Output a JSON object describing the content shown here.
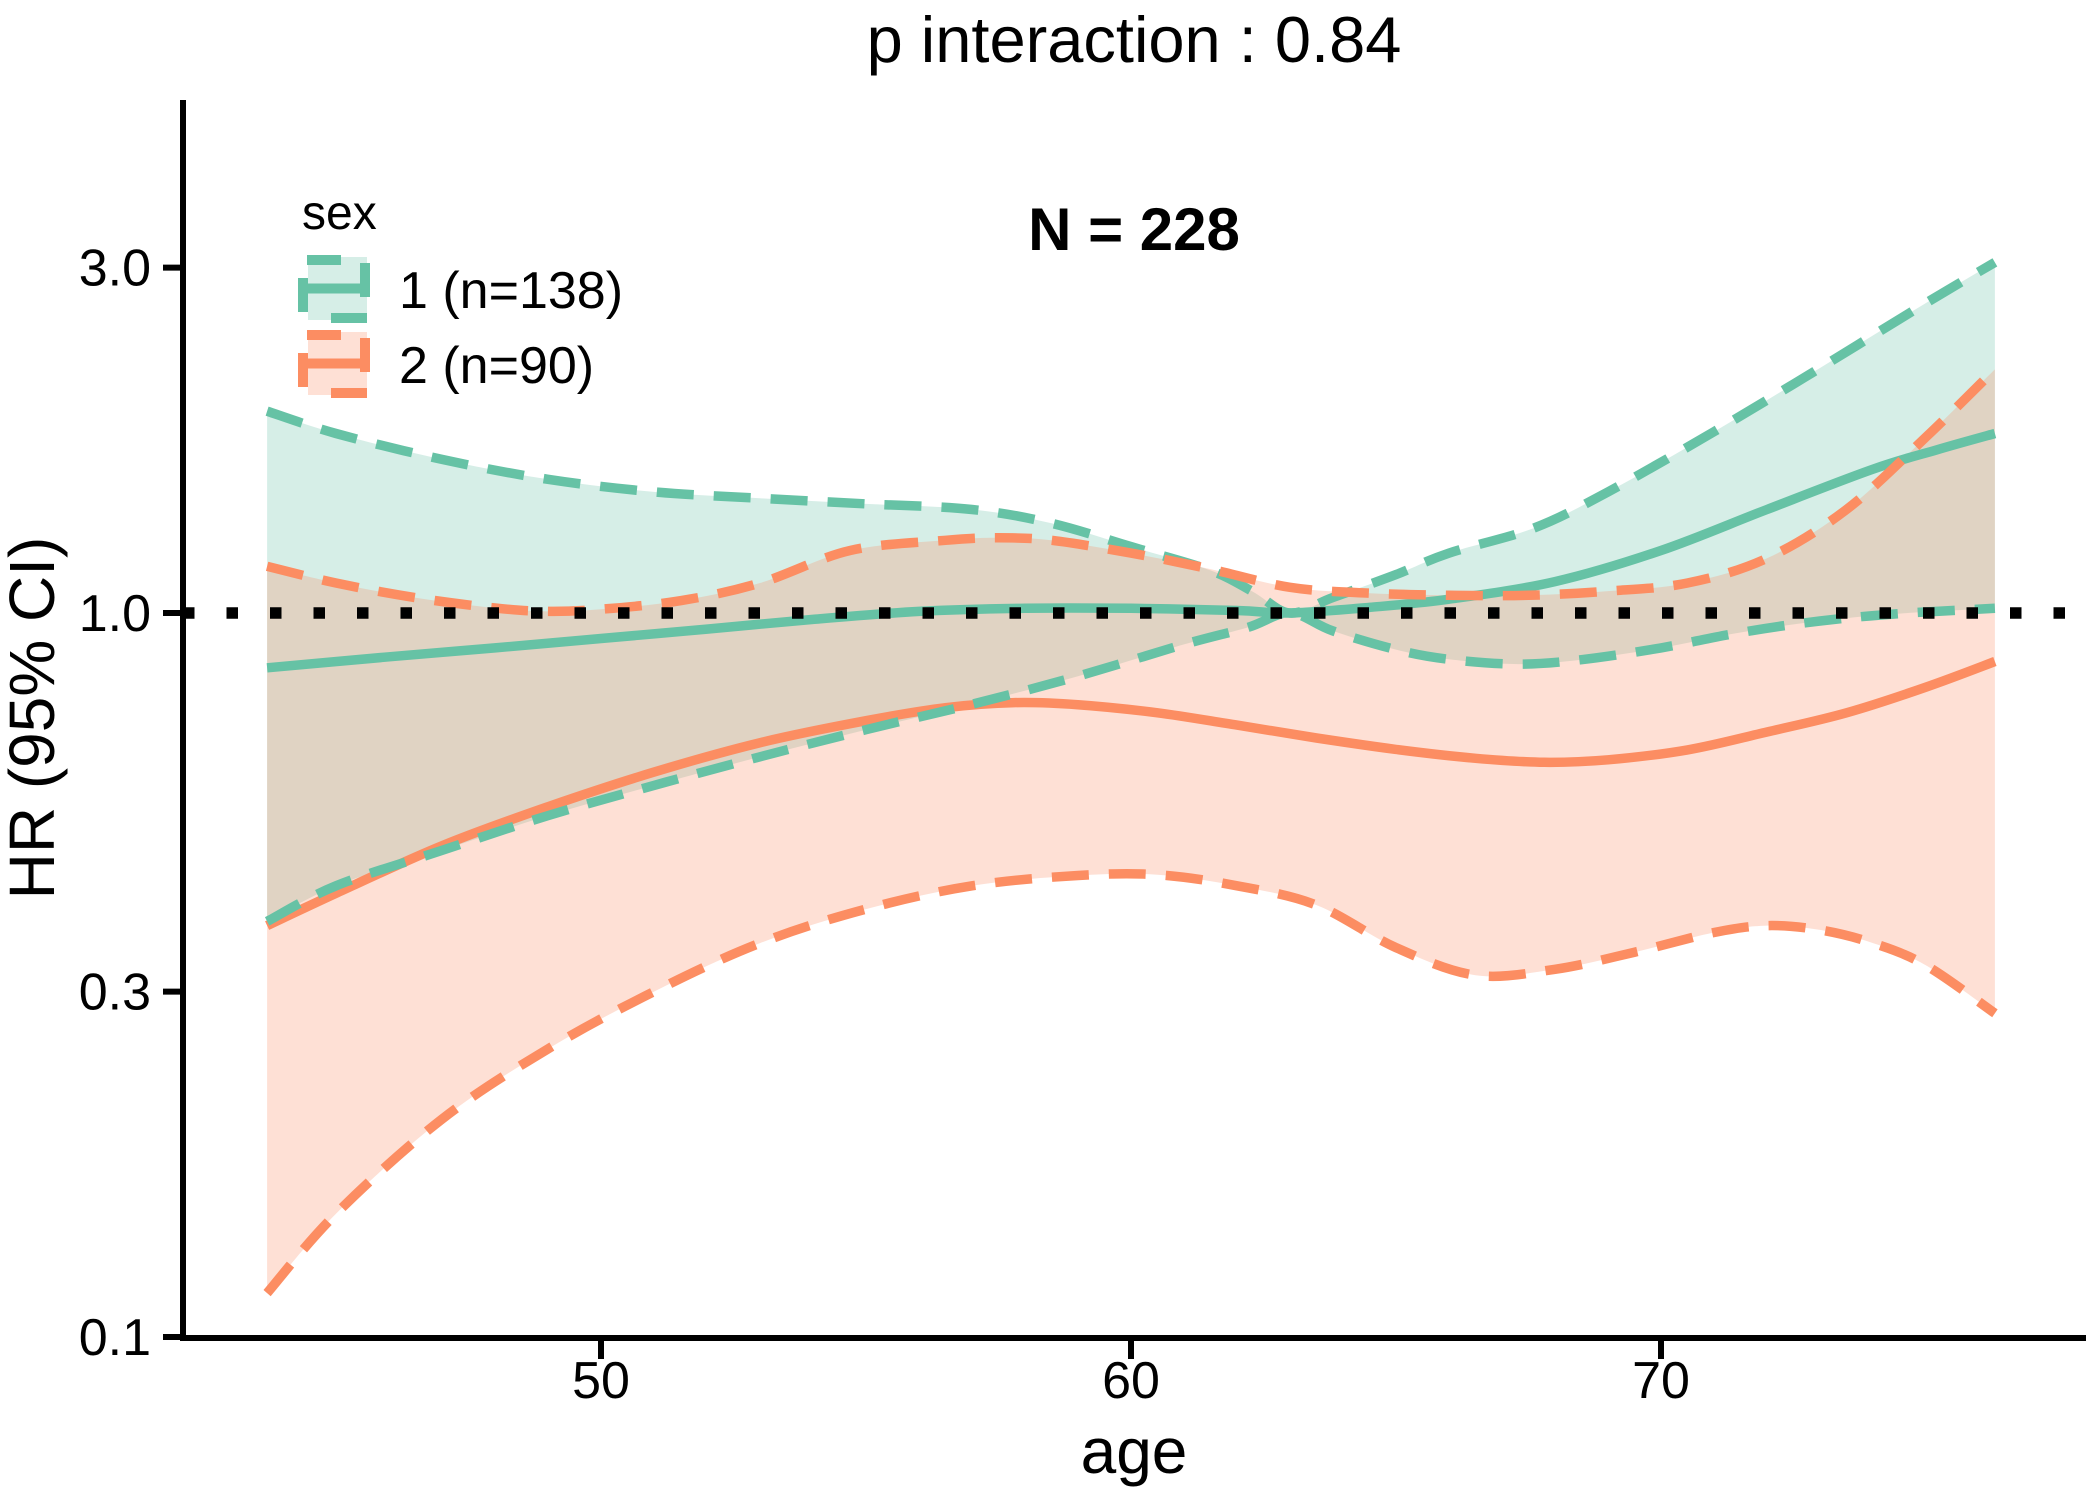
{
  "chart_data": {
    "type": "line",
    "title": "p interaction : 0.84",
    "subtitle_n": "N = 228",
    "xlabel": "age",
    "ylabel": "HR (95% CI)",
    "y_scale": "log10",
    "x_range": [
      43.7,
      76.3
    ],
    "y_axis_ticks": [
      {
        "value": 3.0,
        "label": "3.0"
      },
      {
        "value": 1.0,
        "label": "1.0"
      },
      {
        "value": 0.3,
        "label": "0.3"
      },
      {
        "value": 0.1,
        "label": "0.1"
      }
    ],
    "x_axis_ticks": [
      {
        "value": 50,
        "label": "50"
      },
      {
        "value": 60,
        "label": "60"
      },
      {
        "value": 70,
        "label": "70"
      }
    ],
    "reference_line": 1.0,
    "grid": "off",
    "legend": {
      "title": "sex",
      "position": "top-left-inside"
    },
    "series": [
      {
        "name": "1 (n=138)",
        "group": "sex 1",
        "n": 138,
        "color": "#66C2A5",
        "fill": "rgba(102,194,165,0.27)",
        "line": [
          [
            43.7,
            0.84
          ],
          [
            46,
            0.87
          ],
          [
            48,
            0.895
          ],
          [
            50,
            0.922
          ],
          [
            52,
            0.95
          ],
          [
            54,
            0.98
          ],
          [
            56,
            1.005
          ],
          [
            58,
            1.015
          ],
          [
            60,
            1.015
          ],
          [
            62,
            1.008
          ],
          [
            63,
            1.0
          ],
          [
            64.5,
            1.018
          ],
          [
            66,
            1.045
          ],
          [
            68,
            1.105
          ],
          [
            70,
            1.22
          ],
          [
            72,
            1.39
          ],
          [
            74,
            1.58
          ],
          [
            75.2,
            1.68
          ],
          [
            76.3,
            1.77
          ]
        ],
        "upper": [
          [
            43.7,
            1.9
          ],
          [
            45,
            1.77
          ],
          [
            47,
            1.63
          ],
          [
            49,
            1.53
          ],
          [
            51,
            1.47
          ],
          [
            53,
            1.44
          ],
          [
            55,
            1.415
          ],
          [
            57,
            1.39
          ],
          [
            58.5,
            1.33
          ],
          [
            60,
            1.235
          ],
          [
            61.5,
            1.145
          ],
          [
            62.3,
            1.07
          ],
          [
            63,
            1.0
          ],
          [
            63.8,
            1.05
          ],
          [
            65,
            1.13
          ],
          [
            66,
            1.21
          ],
          [
            67.6,
            1.31
          ],
          [
            69,
            1.47
          ],
          [
            71,
            1.78
          ],
          [
            73,
            2.18
          ],
          [
            75,
            2.68
          ],
          [
            76.3,
            3.05
          ]
        ],
        "lower": [
          [
            43.7,
            0.375
          ],
          [
            45,
            0.42
          ],
          [
            47,
            0.47
          ],
          [
            49,
            0.525
          ],
          [
            51,
            0.578
          ],
          [
            53,
            0.633
          ],
          [
            55,
            0.69
          ],
          [
            57,
            0.748
          ],
          [
            59,
            0.818
          ],
          [
            61,
            0.905
          ],
          [
            62.2,
            0.955
          ],
          [
            63,
            1.0
          ],
          [
            63.8,
            0.945
          ],
          [
            65,
            0.89
          ],
          [
            66,
            0.863
          ],
          [
            67.3,
            0.85
          ],
          [
            68.5,
            0.862
          ],
          [
            70,
            0.895
          ],
          [
            71.5,
            0.94
          ],
          [
            73,
            0.975
          ],
          [
            74.5,
            0.998
          ],
          [
            76.3,
            1.015
          ]
        ]
      },
      {
        "name": "2 (n=90)",
        "group": "sex 2",
        "n": 90,
        "color": "#FC8D62",
        "fill": "rgba(252,141,98,0.27)",
        "line": [
          [
            43.7,
            0.37
          ],
          [
            45,
            0.41
          ],
          [
            47,
            0.477
          ],
          [
            49,
            0.54
          ],
          [
            51,
            0.603
          ],
          [
            53,
            0.662
          ],
          [
            55,
            0.71
          ],
          [
            56.5,
            0.74
          ],
          [
            57.8,
            0.752
          ],
          [
            59,
            0.747
          ],
          [
            60.5,
            0.728
          ],
          [
            62,
            0.7
          ],
          [
            63.5,
            0.672
          ],
          [
            65,
            0.648
          ],
          [
            66.5,
            0.63
          ],
          [
            67.8,
            0.622
          ],
          [
            69,
            0.627
          ],
          [
            70.5,
            0.647
          ],
          [
            72,
            0.685
          ],
          [
            73.5,
            0.728
          ],
          [
            75,
            0.79
          ],
          [
            76.3,
            0.857
          ]
        ],
        "upper": [
          [
            43.7,
            1.16
          ],
          [
            45,
            1.1
          ],
          [
            46.5,
            1.05
          ],
          [
            48,
            1.016
          ],
          [
            49,
            1.005
          ],
          [
            50,
            1.012
          ],
          [
            51.5,
            1.04
          ],
          [
            53,
            1.1
          ],
          [
            54.7,
            1.22
          ],
          [
            56.5,
            1.26
          ],
          [
            57.5,
            1.27
          ],
          [
            58.5,
            1.26
          ],
          [
            60,
            1.21
          ],
          [
            61.5,
            1.15
          ],
          [
            63,
            1.085
          ],
          [
            64.5,
            1.065
          ],
          [
            66,
            1.058
          ],
          [
            67.5,
            1.058
          ],
          [
            69,
            1.072
          ],
          [
            70.5,
            1.1
          ],
          [
            72,
            1.19
          ],
          [
            73.5,
            1.39
          ],
          [
            75,
            1.75
          ],
          [
            76.3,
            2.17
          ]
        ],
        "lower": [
          [
            43.7,
            0.115
          ],
          [
            45,
            0.148
          ],
          [
            47,
            0.2
          ],
          [
            49,
            0.25
          ],
          [
            51,
            0.3
          ],
          [
            53,
            0.35
          ],
          [
            55,
            0.39
          ],
          [
            57,
            0.42
          ],
          [
            59,
            0.434
          ],
          [
            60.5,
            0.435
          ],
          [
            62,
            0.42
          ],
          [
            63.5,
            0.395
          ],
          [
            65,
            0.345
          ],
          [
            66.5,
            0.316
          ],
          [
            68,
            0.322
          ],
          [
            69.5,
            0.34
          ],
          [
            71,
            0.362
          ],
          [
            72,
            0.37
          ],
          [
            73,
            0.365
          ],
          [
            74,
            0.35
          ],
          [
            75,
            0.326
          ],
          [
            76.3,
            0.28
          ]
        ]
      }
    ],
    "colors": {
      "sex1": "#66C2A5",
      "sex2": "#FC8D62",
      "reference": "#000000",
      "axis": "#000000"
    }
  }
}
